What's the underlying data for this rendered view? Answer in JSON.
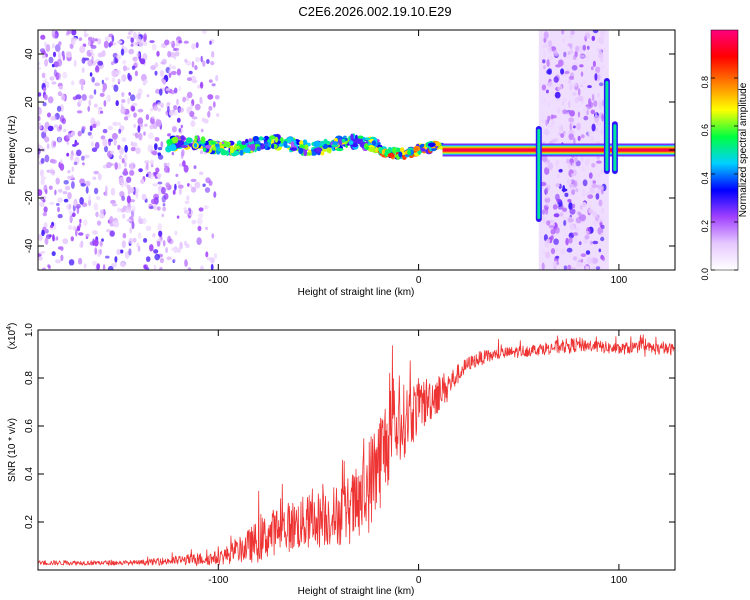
{
  "title": "C2E6.2026.002.19.10.E29",
  "chart_data": [
    {
      "type": "heatmap",
      "name": "spectrogram",
      "xlabel": "Height of straight line (km)",
      "ylabel": "Frequency (Hz)",
      "xlim": [
        -190,
        128
      ],
      "ylim": [
        -50,
        50
      ],
      "x_ticks": [
        -100,
        0,
        100
      ],
      "x_tick_labels": [
        "-100",
        "0",
        "100"
      ],
      "y_ticks": [
        -40,
        -20,
        0,
        20,
        40
      ],
      "y_tick_labels": [
        "-40",
        "-20",
        "0",
        "20",
        "40"
      ],
      "colorbar": {
        "label": "Normalized spectral amplitude",
        "range": [
          0.0,
          1.0
        ],
        "ticks": [
          0.0,
          0.2,
          0.4,
          0.6,
          0.8
        ],
        "tick_labels": [
          "0.0",
          "0.2",
          "0.4",
          "0.6",
          "0.8"
        ],
        "colors": [
          "#ffffff",
          "#e6c8ff",
          "#a040ff",
          "#0000ff",
          "#00d0ff",
          "#00ff40",
          "#ffff00",
          "#ff8000",
          "#ff0000",
          "#ff0080"
        ]
      },
      "noise_regions_x": [
        [
          -190,
          -100
        ],
        [
          62,
          93
        ]
      ],
      "signal_band": {
        "description": "narrow band centered near 0 Hz",
        "segments": [
          {
            "x_start": -125,
            "x_end": -20,
            "center_freq": 2,
            "half_width": 3,
            "amplitude": 0.55
          },
          {
            "x_start": -20,
            "x_end": 12,
            "center_freq": 0,
            "half_width": 2,
            "amplitude": 0.75
          },
          {
            "x_start": 12,
            "x_end": 128,
            "center_freq": 0,
            "half_width": 1.5,
            "amplitude": 1.0
          }
        ],
        "vertical_streaks": [
          {
            "x": 60,
            "freq_range": [
              -30,
              10
            ]
          },
          {
            "x": 94,
            "freq_range": [
              -10,
              30
            ]
          },
          {
            "x": 98,
            "freq_range": [
              -10,
              12
            ]
          }
        ]
      }
    },
    {
      "type": "line",
      "name": "snr",
      "xlabel": "Height of straight line (km)",
      "ylabel": "SNR (10 * v/v)",
      "y_multiplier": "(x10^4)",
      "y_multiplier_base": "(x10",
      "y_multiplier_exp": "4",
      "xlim": [
        -190,
        128
      ],
      "ylim": [
        0,
        1.0
      ],
      "x_ticks": [
        -100,
        0,
        100
      ],
      "x_tick_labels": [
        "-100",
        "0",
        "100"
      ],
      "y_ticks": [
        0.2,
        0.4,
        0.6,
        0.8,
        1.0
      ],
      "y_tick_labels": [
        "0.2",
        "0.4",
        "0.6",
        "0.8",
        "1.0"
      ],
      "color": "#ee3333",
      "series": [
        {
          "name": "SNR",
          "x": [
            -190,
            -160,
            -140,
            -120,
            -100,
            -90,
            -80,
            -70,
            -60,
            -50,
            -40,
            -30,
            -25,
            -20,
            -15,
            -10,
            -5,
            0,
            5,
            10,
            15,
            20,
            25,
            30,
            40,
            50,
            60,
            70,
            80,
            90,
            100,
            110,
            120,
            128
          ],
          "y": [
            0.03,
            0.03,
            0.03,
            0.04,
            0.05,
            0.08,
            0.12,
            0.17,
            0.19,
            0.21,
            0.23,
            0.27,
            0.35,
            0.45,
            0.55,
            0.6,
            0.64,
            0.68,
            0.71,
            0.74,
            0.77,
            0.82,
            0.86,
            0.88,
            0.9,
            0.91,
            0.92,
            0.93,
            0.94,
            0.93,
            0.92,
            0.93,
            0.92,
            0.92
          ],
          "noise": [
            0.01,
            0.01,
            0.01,
            0.02,
            0.03,
            0.05,
            0.09,
            0.1,
            0.11,
            0.12,
            0.13,
            0.16,
            0.2,
            0.22,
            0.2,
            0.17,
            0.14,
            0.12,
            0.1,
            0.08,
            0.06,
            0.04,
            0.03,
            0.03,
            0.025,
            0.025,
            0.025,
            0.03,
            0.03,
            0.025,
            0.025,
            0.025,
            0.025,
            0.025
          ]
        }
      ]
    }
  ]
}
